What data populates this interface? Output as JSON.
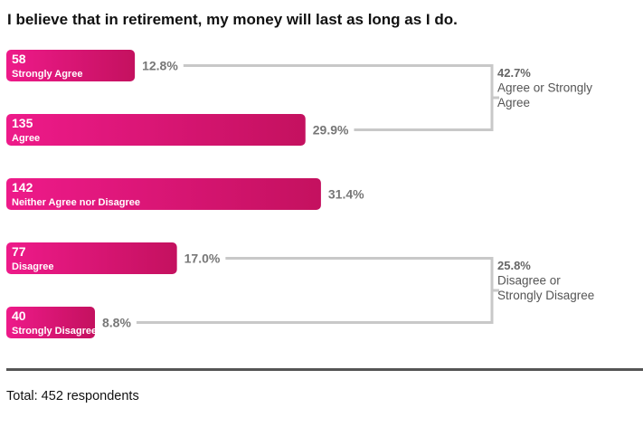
{
  "chart_data": {
    "type": "bar",
    "orientation": "horizontal",
    "title": "I believe that in retirement, my money will last as long as I do.",
    "categories": [
      "Strongly Agree",
      "Agree",
      "Neither Agree nor Disagree",
      "Disagree",
      "Strongly Disagree"
    ],
    "values": [
      58,
      135,
      142,
      77,
      40
    ],
    "percentages": [
      "12.8%",
      "29.9%",
      "31.4%",
      "17.0%",
      "8.8%"
    ],
    "groups": [
      {
        "percent": "42.7%",
        "label_lines": [
          "Agree or Strongly",
          "Agree"
        ],
        "members": [
          0,
          1
        ]
      },
      {
        "percent": "25.8%",
        "label_lines": [
          "Disagree or",
          "Strongly Disagree"
        ],
        "members": [
          3,
          4
        ]
      }
    ],
    "colors": {
      "bar_start": "#ee1a8a",
      "bar_end": "#c4115f",
      "bracket": "#c8c8c8",
      "pct_text": "#777777"
    },
    "grid": false
  },
  "footer": {
    "total": "Total: 452 respondents"
  }
}
